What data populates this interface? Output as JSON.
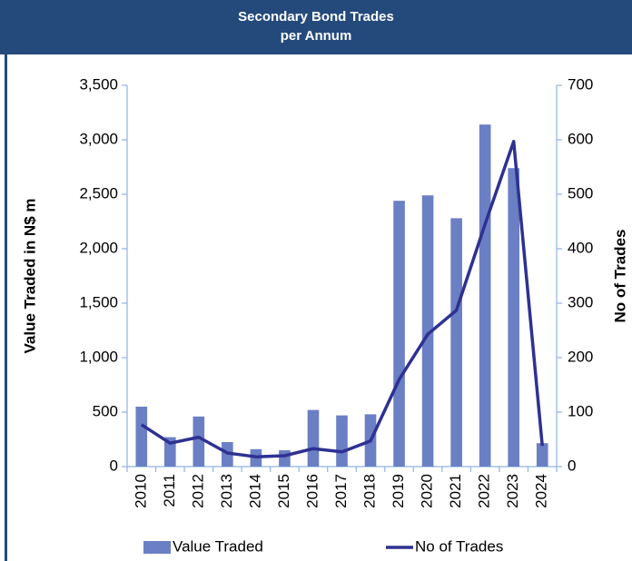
{
  "chart_data": {
    "type": "bar_line",
    "title": [
      "Secondary Bond Trades",
      "per Annum"
    ],
    "y_label": "Value Traded in N$ m",
    "y2_label": "No of Trades",
    "categories": [
      "2010",
      "2011",
      "2012",
      "2013",
      "2014",
      "2015",
      "2016",
      "2017",
      "2018",
      "2019",
      "2020",
      "2021",
      "2022",
      "2023",
      "2024"
    ],
    "series": [
      {
        "name": "Value Traded",
        "kind": "bar",
        "color": "#6b7fc4",
        "values": [
          550,
          270,
          460,
          225,
          160,
          150,
          520,
          470,
          480,
          2440,
          2490,
          2280,
          3140,
          2740,
          215
        ]
      },
      {
        "name": "No of Trades",
        "kind": "line",
        "axis": "y2",
        "color": "#2e3192",
        "values": [
          77,
          43,
          54,
          25,
          18,
          20,
          33,
          27,
          47,
          160,
          243,
          287,
          445,
          597,
          38
        ]
      }
    ],
    "ylim": [
      0,
      3500
    ],
    "yticks": [
      0,
      500,
      {
        "value": 1000,
        "label": "1,000"
      },
      {
        "value": 1500,
        "label": "1,500"
      },
      {
        "value": 2000,
        "label": "2,000"
      },
      {
        "value": 2500,
        "label": "2,500"
      },
      {
        "value": 3000,
        "label": "3,000"
      },
      {
        "value": 3500,
        "label": "3,500"
      }
    ],
    "y2lim": [
      0,
      700
    ],
    "y2ticks": [
      0,
      100,
      200,
      300,
      400,
      500,
      600,
      700
    ],
    "legend": "bottom"
  }
}
